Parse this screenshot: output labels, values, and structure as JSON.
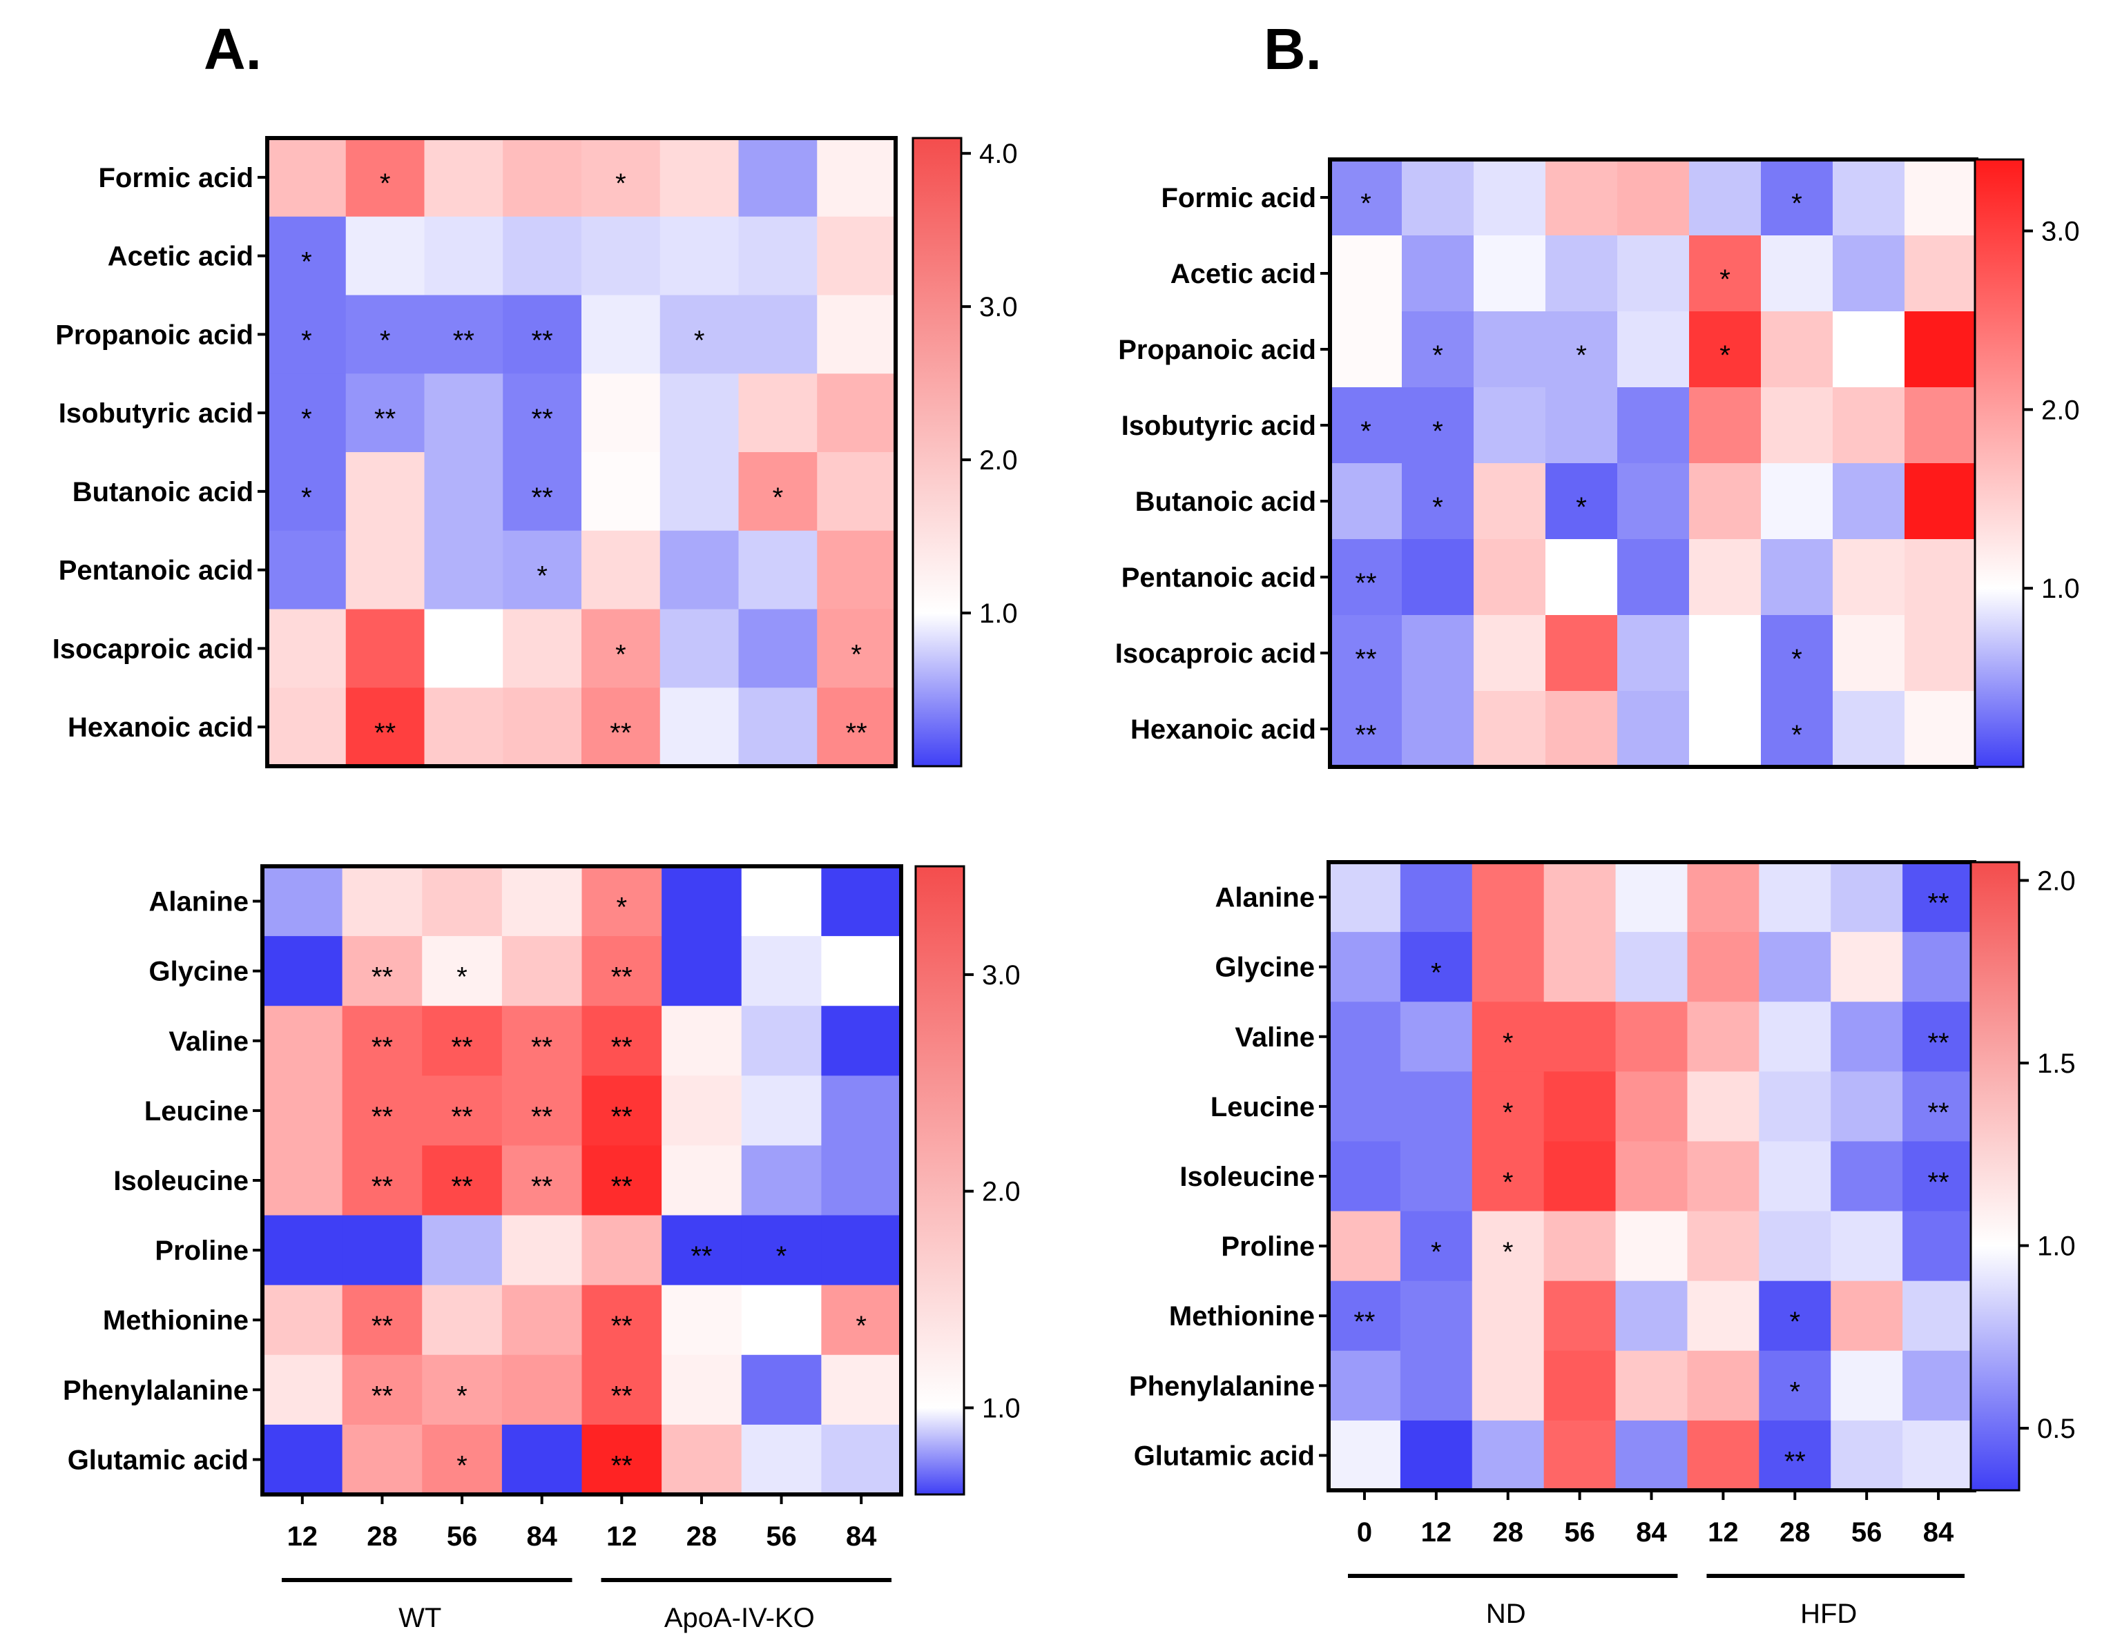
{
  "panels": [
    {
      "id": "A",
      "label": "A."
    },
    {
      "id": "B",
      "label": "B."
    }
  ],
  "chart_data": [
    {
      "type": "heatmap",
      "panel": "A",
      "title": "",
      "rows": [
        "Formic acid",
        "Acetic acid",
        "Propanoic acid",
        "Isobutyric acid",
        "Butanoic acid",
        "Pentanoic acid",
        "Isocaproic acid",
        "Hexanoic acid"
      ],
      "columns": [
        "12",
        "28",
        "56",
        "84",
        "12",
        "28",
        "56",
        "84"
      ],
      "groups": [
        {
          "name": "WT",
          "start": 0,
          "end": 3
        },
        {
          "name": "ApoA-IV-KO",
          "start": 4,
          "end": 7
        }
      ],
      "values": [
        [
          1.9,
          2.8,
          1.6,
          1.9,
          1.8,
          1.5,
          0.5,
          1.2
        ],
        [
          0.3,
          0.9,
          0.85,
          0.75,
          0.8,
          0.85,
          0.8,
          1.5
        ],
        [
          0.3,
          0.35,
          0.35,
          0.3,
          0.9,
          0.7,
          0.7,
          1.2
        ],
        [
          0.3,
          0.45,
          0.6,
          0.35,
          1.1,
          0.8,
          1.6,
          2.0
        ],
        [
          0.3,
          1.5,
          0.6,
          0.35,
          1.05,
          0.8,
          2.4,
          1.7
        ],
        [
          0.35,
          1.5,
          0.6,
          0.55,
          1.5,
          0.55,
          0.75,
          2.2
        ],
        [
          1.5,
          3.2,
          1.0,
          1.5,
          2.3,
          0.7,
          0.45,
          2.3
        ],
        [
          1.6,
          3.6,
          1.7,
          1.8,
          2.5,
          0.9,
          0.7,
          2.6
        ]
      ],
      "significance": [
        [
          "",
          "*",
          "",
          "",
          "*",
          "",
          "",
          ""
        ],
        [
          "*",
          "",
          "",
          "",
          "",
          "",
          "",
          ""
        ],
        [
          "*",
          "*",
          "**",
          "**",
          "",
          "*",
          "",
          ""
        ],
        [
          "*",
          "**",
          "",
          "**",
          "",
          "",
          "",
          ""
        ],
        [
          "*",
          "",
          "",
          "**",
          "",
          "",
          "*",
          ""
        ],
        [
          "",
          "",
          "",
          "*",
          "",
          "",
          "",
          ""
        ],
        [
          "",
          "",
          "",
          "",
          "*",
          "",
          "",
          "*"
        ],
        [
          "",
          "**",
          "",
          "",
          "**",
          "",
          "",
          "**"
        ]
      ],
      "colorbar": {
        "min": 0.0,
        "max": 4.1,
        "ticks": [
          "1.0",
          "2.0",
          "3.0",
          "4.0"
        ]
      }
    },
    {
      "type": "heatmap",
      "panel": "B",
      "title": "",
      "rows": [
        "Formic acid",
        "Acetic acid",
        "Propanoic acid",
        "Isobutyric acid",
        "Butanoic acid",
        "Pentanoic acid",
        "Isocaproic acid",
        "Hexanoic acid"
      ],
      "columns": [
        "0",
        "12",
        "28",
        "56",
        "84",
        "12",
        "28",
        "56",
        "84"
      ],
      "groups": [
        {
          "name": "ND",
          "start": 0,
          "end": 4
        },
        {
          "name": "HFD",
          "start": 5,
          "end": 8
        }
      ],
      "values": [
        [
          0.4,
          0.7,
          0.85,
          1.7,
          1.8,
          0.7,
          0.3,
          0.75,
          1.1
        ],
        [
          1.05,
          0.5,
          0.95,
          0.7,
          0.8,
          2.6,
          0.9,
          0.6,
          1.5
        ],
        [
          1.05,
          0.4,
          0.6,
          0.6,
          0.85,
          3.1,
          1.6,
          1.0,
          3.4
        ],
        [
          0.3,
          0.3,
          0.65,
          0.6,
          0.35,
          2.3,
          1.4,
          1.6,
          2.2
        ],
        [
          0.6,
          0.3,
          1.5,
          0.2,
          0.4,
          1.7,
          0.95,
          0.6,
          3.4
        ],
        [
          0.3,
          0.2,
          1.6,
          1.0,
          0.3,
          1.3,
          0.6,
          1.3,
          1.4
        ],
        [
          0.35,
          0.5,
          1.3,
          2.6,
          0.65,
          1.0,
          0.3,
          1.15,
          1.4
        ],
        [
          0.35,
          0.5,
          1.5,
          1.7,
          0.6,
          1.0,
          0.3,
          0.8,
          1.1
        ]
      ],
      "significance": [
        [
          "*",
          "",
          "",
          "",
          "",
          "",
          "*",
          "",
          ""
        ],
        [
          "",
          "",
          "",
          "",
          "",
          "*",
          "",
          "",
          ""
        ],
        [
          "",
          "*",
          "",
          "*",
          "",
          "*",
          "",
          "",
          ""
        ],
        [
          "*",
          "*",
          "",
          "",
          "",
          "",
          "",
          "",
          ""
        ],
        [
          "",
          "*",
          "",
          "*",
          "",
          "",
          "",
          "",
          ""
        ],
        [
          "**",
          "",
          "",
          "",
          "",
          "",
          "",
          "",
          ""
        ],
        [
          "**",
          "",
          "",
          "",
          "",
          "",
          "*",
          "",
          ""
        ],
        [
          "**",
          "",
          "",
          "",
          "",
          "",
          "*",
          "",
          ""
        ]
      ],
      "colorbar": {
        "min": 0.0,
        "max": 3.4,
        "ticks": [
          "1.0",
          "2.0",
          "3.0"
        ]
      }
    },
    {
      "type": "heatmap",
      "panel": "A",
      "title": "",
      "rows": [
        "Alanine",
        "Glycine",
        "Valine",
        "Leucine",
        "Isoleucine",
        "Proline",
        "Methionine",
        "Phenylalanine",
        "Glutamic acid"
      ],
      "columns": [
        "12",
        "28",
        "56",
        "84",
        "12",
        "28",
        "56",
        "84"
      ],
      "groups": [
        {
          "name": "WT",
          "start": 0,
          "end": 3
        },
        {
          "name": "ApoA-IV-KO",
          "start": 4,
          "end": 7
        }
      ],
      "values": [
        [
          0.8,
          1.35,
          1.55,
          1.25,
          2.3,
          0.6,
          1.0,
          0.35
        ],
        [
          0.5,
          1.8,
          1.15,
          1.6,
          2.5,
          0.6,
          0.95,
          1.0
        ],
        [
          1.9,
          2.6,
          2.8,
          2.5,
          2.9,
          1.15,
          0.9,
          0.55
        ],
        [
          1.9,
          2.6,
          2.6,
          2.5,
          3.2,
          1.25,
          0.95,
          0.75
        ],
        [
          1.9,
          2.6,
          3.0,
          2.3,
          3.3,
          1.15,
          0.8,
          0.75
        ],
        [
          0.35,
          0.6,
          0.85,
          1.3,
          1.8,
          0.35,
          0.4,
          0.45
        ],
        [
          1.6,
          2.5,
          1.5,
          1.9,
          2.8,
          1.1,
          1.0,
          2.1
        ],
        [
          1.3,
          2.2,
          2.0,
          2.1,
          2.8,
          1.15,
          0.7,
          1.2
        ],
        [
          0.4,
          2.0,
          2.3,
          0.4,
          3.4,
          1.7,
          0.95,
          0.9
        ]
      ],
      "significance": [
        [
          "",
          "",
          "",
          "",
          "*",
          "",
          "",
          ""
        ],
        [
          "",
          "**",
          "*",
          "",
          "**",
          "",
          "",
          ""
        ],
        [
          "",
          "**",
          "**",
          "**",
          "**",
          "",
          "",
          ""
        ],
        [
          "",
          "**",
          "**",
          "**",
          "**",
          "",
          "",
          ""
        ],
        [
          "",
          "**",
          "**",
          "**",
          "**",
          "",
          "",
          ""
        ],
        [
          "",
          "",
          "",
          "",
          "",
          "**",
          "*",
          ""
        ],
        [
          "",
          "**",
          "",
          "",
          "**",
          "",
          "",
          "*"
        ],
        [
          "",
          "**",
          "*",
          "",
          "**",
          "",
          "",
          ""
        ],
        [
          "",
          "",
          "*",
          "",
          "**",
          "",
          "",
          ""
        ]
      ],
      "colorbar": {
        "min": 0.6,
        "max": 3.5,
        "ticks": [
          "1.0",
          "2.0",
          "3.0"
        ]
      }
    },
    {
      "type": "heatmap",
      "panel": "B",
      "title": "",
      "rows": [
        "Alanine",
        "Glycine",
        "Valine",
        "Leucine",
        "Isoleucine",
        "Proline",
        "Methionine",
        "Phenylalanine",
        "Glutamic acid"
      ],
      "columns": [
        "0",
        "12",
        "28",
        "56",
        "84",
        "12",
        "28",
        "56",
        "84"
      ],
      "groups": [
        {
          "name": "ND",
          "start": 0,
          "end": 4
        },
        {
          "name": "HFD",
          "start": 5,
          "end": 8
        }
      ],
      "values": [
        [
          0.85,
          0.5,
          1.65,
          1.3,
          0.95,
          1.45,
          0.9,
          0.8,
          0.4
        ],
        [
          0.65,
          0.4,
          1.65,
          1.3,
          0.85,
          1.5,
          0.7,
          1.1,
          0.6
        ],
        [
          0.55,
          0.65,
          1.75,
          1.75,
          1.6,
          1.35,
          0.9,
          0.65,
          0.45
        ],
        [
          0.55,
          0.55,
          1.75,
          1.85,
          1.5,
          1.15,
          0.85,
          0.75,
          0.55
        ],
        [
          0.5,
          0.55,
          1.75,
          1.9,
          1.45,
          1.35,
          0.9,
          0.55,
          0.45
        ],
        [
          1.3,
          0.5,
          1.15,
          1.3,
          1.05,
          1.25,
          0.85,
          0.9,
          0.5
        ],
        [
          0.5,
          0.55,
          1.15,
          1.7,
          0.75,
          1.1,
          0.4,
          1.35,
          0.85
        ],
        [
          0.65,
          0.55,
          1.15,
          1.75,
          1.25,
          1.35,
          0.5,
          0.95,
          0.7
        ],
        [
          0.95,
          0.3,
          0.7,
          1.7,
          0.6,
          1.7,
          0.4,
          0.85,
          0.9
        ]
      ],
      "significance": [
        [
          "",
          "",
          "",
          "",
          "",
          "",
          "",
          "",
          "**"
        ],
        [
          "",
          "*",
          "",
          "",
          "",
          "",
          "",
          "",
          ""
        ],
        [
          "",
          "",
          "*",
          "",
          "",
          "",
          "",
          "",
          "**"
        ],
        [
          "",
          "",
          "*",
          "",
          "",
          "",
          "",
          "",
          "**"
        ],
        [
          "",
          "",
          "*",
          "",
          "",
          "",
          "",
          "",
          "**"
        ],
        [
          "",
          "*",
          "*",
          "",
          "",
          "",
          "",
          "",
          ""
        ],
        [
          "**",
          "",
          "",
          "",
          "",
          "",
          "*",
          "",
          ""
        ],
        [
          "",
          "",
          "",
          "",
          "",
          "",
          "*",
          "",
          ""
        ],
        [
          "",
          "",
          "",
          "",
          "",
          "",
          "**",
          "",
          ""
        ]
      ],
      "colorbar": {
        "min": 0.33,
        "max": 2.05,
        "ticks": [
          "0.5",
          "1.0",
          "1.5",
          "2.0"
        ]
      }
    }
  ],
  "colors": {
    "low": "#3f3ff5",
    "mid": "#ffffff",
    "high": "#ff1a1a",
    "high_soft": "#f44d4d",
    "text": "#000000"
  }
}
